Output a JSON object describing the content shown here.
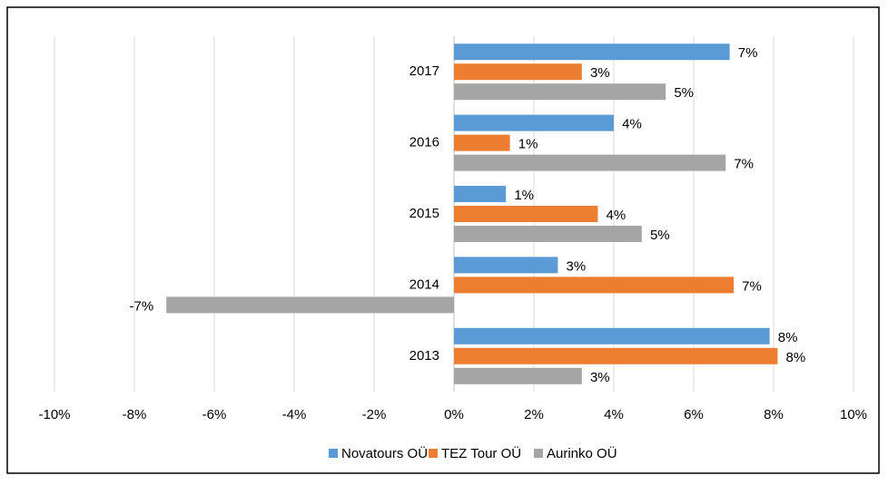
{
  "chart_data": {
    "type": "hbar",
    "categories": [
      "2013",
      "2014",
      "2015",
      "2016",
      "2017"
    ],
    "series": [
      {
        "name": "Novatours OÜ",
        "color": "#5b9bd5",
        "values": [
          7.9,
          2.6,
          1.3,
          4.0,
          6.9
        ],
        "value_labels": [
          "8%",
          "3%",
          "1%",
          "4%",
          "7%"
        ]
      },
      {
        "name": "TEZ Tour OÜ",
        "color": "#ed7d31",
        "values": [
          8.1,
          7.0,
          3.6,
          1.4,
          3.2
        ],
        "value_labels": [
          "8%",
          "7%",
          "4%",
          "1%",
          "3%"
        ]
      },
      {
        "name": "Aurinko OÜ",
        "color": "#a5a5a5",
        "values": [
          3.2,
          -7.2,
          4.7,
          6.8,
          5.3
        ],
        "value_labels": [
          "3%",
          "-7%",
          "5%",
          "7%",
          "5%"
        ]
      }
    ],
    "xlim": [
      -10,
      10
    ],
    "xticks": [
      {
        "value": -10,
        "label": "-10%"
      },
      {
        "value": -8,
        "label": "-8%"
      },
      {
        "value": -6,
        "label": "-6%"
      },
      {
        "value": -4,
        "label": "-4%"
      },
      {
        "value": -2,
        "label": "-2%"
      },
      {
        "value": 0,
        "label": "0%"
      },
      {
        "value": 2,
        "label": "2%"
      },
      {
        "value": 4,
        "label": "4%"
      },
      {
        "value": 6,
        "label": "6%"
      },
      {
        "value": 8,
        "label": "8%"
      },
      {
        "value": 10,
        "label": "10%"
      }
    ],
    "grid": true,
    "legend": "bottom"
  }
}
